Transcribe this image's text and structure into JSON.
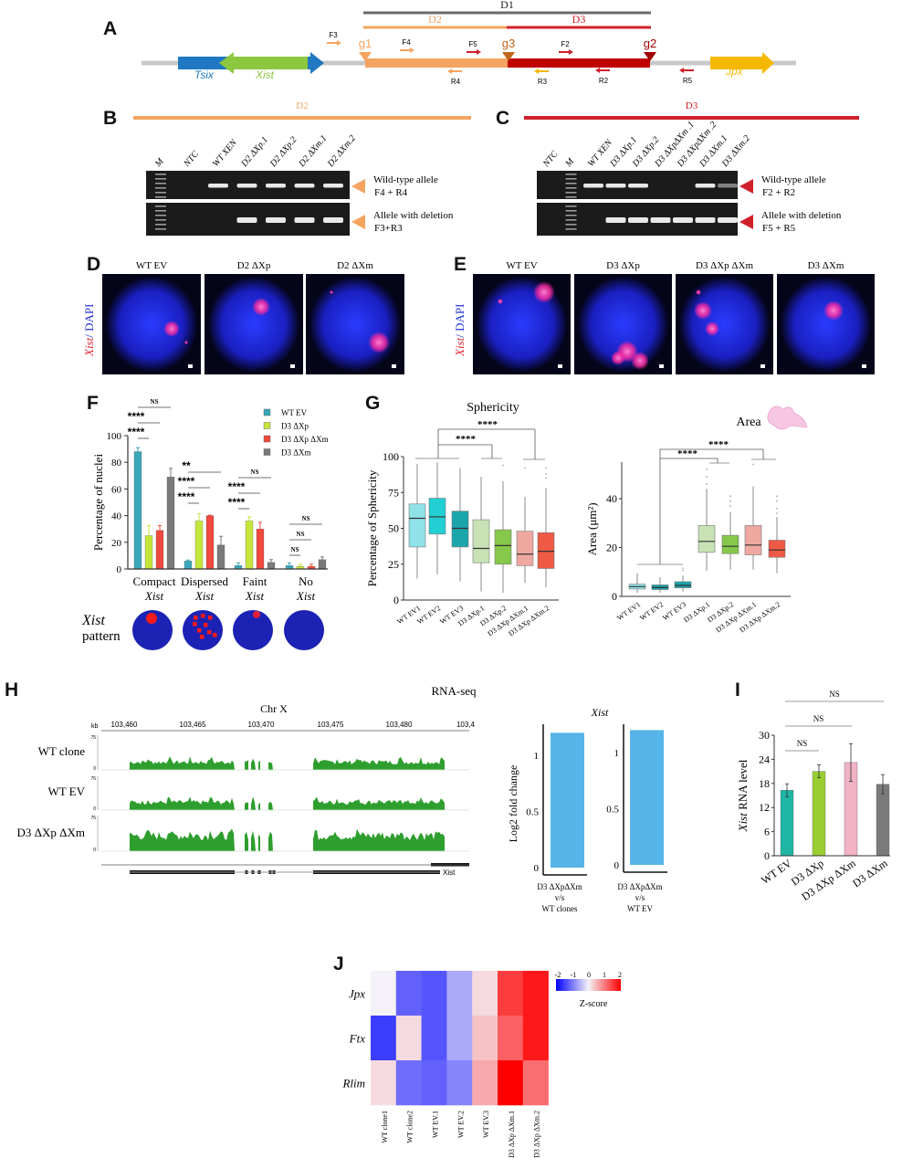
{
  "panels": {
    "A": "A",
    "B": "B",
    "C": "C",
    "D": "D",
    "E": "E",
    "F": "F",
    "G": "G",
    "H": "H",
    "I": "I",
    "J": "J"
  },
  "panel_a": {
    "regions": [
      {
        "name": "D1",
        "color": "#6b6b6b"
      },
      {
        "name": "D2",
        "color": "#f4a460"
      },
      {
        "name": "D3",
        "color": "#d0202a"
      }
    ],
    "genes": {
      "tsix": "Tsix",
      "xist": "Xist",
      "jpx": "Jpx"
    },
    "guides": [
      "g1",
      "g3",
      "g2"
    ],
    "primers_forward": [
      "F3",
      "F4",
      "F5",
      "F2"
    ],
    "primers_reverse": [
      "R4",
      "R3",
      "R2",
      "R5"
    ]
  },
  "panel_b": {
    "region": "D2",
    "lanes": [
      "M",
      "NTC",
      "WT XEN",
      "D2 ΔXp.1",
      "D2 ΔXp.2",
      "D2 ΔXm.1",
      "D2 ΔXm.2"
    ],
    "wt_band": [
      0,
      0,
      1,
      1,
      1,
      1,
      1
    ],
    "del_band": [
      0,
      0,
      0,
      1,
      1,
      1,
      1
    ],
    "band_labels": [
      [
        "Wild-type allele",
        "F4 + R4"
      ],
      [
        "Allele with deletion",
        "F3+R3"
      ]
    ]
  },
  "panel_c": {
    "region": "D3",
    "lanes": [
      "NTC",
      "M",
      "WT XEN",
      "D3 ΔXp.1",
      "D3 ΔXp.2",
      "D3 ΔXpΔXm .1",
      "D3 ΔXpΔXm .2",
      "D3 ΔXm.1",
      "D3 ΔXm.2"
    ],
    "wt_band": [
      0,
      0,
      1,
      1,
      1,
      0,
      0,
      1,
      0.5
    ],
    "del_band": [
      0,
      0,
      0,
      1,
      1,
      1,
      1,
      1,
      1
    ],
    "band_labels": [
      [
        "Wild-type allele",
        "F2 + R2"
      ],
      [
        "Allele with deletion",
        "F5 + R5"
      ]
    ]
  },
  "panel_d": {
    "ylabel_italic": "Xist",
    "ylabel_rest": "/ DAPI",
    "images": [
      "WT EV",
      "D2 ΔXp",
      "D2 ΔXm"
    ]
  },
  "panel_e": {
    "ylabel_italic": "Xist",
    "ylabel_rest": "/ DAPI",
    "images": [
      "WT EV",
      "D3 ΔXp",
      "D3 ΔXp ΔXm",
      "D3 ΔXm"
    ]
  },
  "chart_data": [
    {
      "id": "F",
      "type": "bar",
      "ylabel": "Percentage of nuclei",
      "ylim": [
        0,
        100
      ],
      "yticks": [
        "0",
        "20",
        "40",
        "60",
        "80",
        "100"
      ],
      "categories": [
        {
          "line1": "Compact",
          "line2": "Xist"
        },
        {
          "line1": "Dispersed",
          "line2": "Xist"
        },
        {
          "line1": "Faint",
          "line2": "Xist"
        },
        {
          "line1": "No",
          "line2": "Xist"
        }
      ],
      "series": [
        {
          "name": "WT EV",
          "color": "#3aa6b9",
          "values": [
            88,
            6,
            2.5,
            2.5
          ],
          "errors": [
            3,
            0.7,
            2,
            2
          ]
        },
        {
          "name": "D3 ΔXp",
          "color": "#c5e63a",
          "values": [
            25,
            36,
            36,
            2
          ],
          "errors": [
            7.5,
            5.5,
            3,
            1.5
          ]
        },
        {
          "name": "D3 ΔXp ΔXm",
          "color": "#f0483e",
          "values": [
            29,
            40,
            30,
            2
          ],
          "errors": [
            3.5,
            0.3,
            5,
            1.5
          ]
        },
        {
          "name": "D3 ΔXm",
          "color": "#7a7a7a",
          "values": [
            69,
            18,
            5,
            7
          ],
          "errors": [
            6.5,
            6.5,
            2,
            2
          ]
        }
      ],
      "significance": [
        [
          {
            "label": "****",
            "to": 1
          },
          {
            "label": "****",
            "to": 2
          },
          {
            "label": "NS",
            "to": 3
          }
        ],
        [
          {
            "label": "****",
            "to": 1
          },
          {
            "label": "****",
            "to": 2
          },
          {
            "label": "**",
            "to": 3
          }
        ],
        [
          {
            "label": "****",
            "to": 1
          },
          {
            "label": "****",
            "to": 2
          },
          {
            "label": "NS",
            "to": 3
          }
        ],
        [
          {
            "label": "NS",
            "to": 1
          },
          {
            "label": "NS",
            "to": 2
          },
          {
            "label": "NS",
            "to": 3
          }
        ]
      ],
      "pattern_label": {
        "line1": "Xist",
        "line2": "pattern"
      },
      "legend": "top-right"
    },
    {
      "id": "G-sphericity",
      "type": "box",
      "title": "Sphericity",
      "ylabel": "Percentage of Sphericity",
      "ylim": [
        0,
        100
      ],
      "yticks": [
        "0",
        "25",
        "50",
        "75",
        "100"
      ],
      "categories": [
        "WT EV1",
        "WT EV2",
        "WT EV3",
        "D3 ΔXp.1",
        "D3 ΔXp.2",
        "D3 ΔXp ΔXm.1",
        "D3 ΔXp ΔXm.2"
      ],
      "colors": [
        "#8fe3e8",
        "#22cfd3",
        "#1aa5ab",
        "#c8e2b5",
        "#86c84a",
        "#eea8a0",
        "#ee5a45"
      ],
      "boxes": [
        [
          15,
          37,
          57,
          67,
          95
        ],
        [
          18,
          46,
          58,
          71,
          96
        ],
        [
          13,
          37,
          50,
          62,
          92
        ],
        [
          6,
          26,
          36,
          56,
          86
        ],
        [
          5,
          25,
          38,
          49,
          83
        ],
        [
          12,
          24,
          32,
          48,
          72
        ],
        [
          9,
          22,
          34,
          47,
          78
        ]
      ],
      "significance": [
        "****",
        "****"
      ]
    },
    {
      "id": "G-area",
      "type": "box",
      "title": "Area",
      "ylabel": "Area (μm²)",
      "ylim": [
        0,
        55
      ],
      "yticks": [
        "0",
        "20",
        "40"
      ],
      "categories": [
        "WT EV1",
        "WT EV2",
        "WT EV3",
        "D3 ΔXp.1",
        "D3 ΔXp.2",
        "D3 ΔXp ΔXm.1",
        "D3 ΔXp ΔXm.2"
      ],
      "colors": [
        "#8fe3e8",
        "#1aa5ab",
        "#1aa5ab",
        "#c8e2b5",
        "#86c84a",
        "#eea8a0",
        "#ee5a45"
      ],
      "boxes": [
        [
          1.5,
          3,
          4,
          5,
          9.5
        ],
        [
          1.5,
          2.8,
          3.6,
          4.7,
          7.5
        ],
        [
          2,
          3.5,
          4.5,
          6,
          8.5
        ],
        [
          10.5,
          18,
          22.5,
          29,
          44
        ],
        [
          11,
          17.5,
          20.5,
          25,
          34.5
        ],
        [
          11,
          17,
          21,
          29,
          45
        ],
        [
          9.5,
          16,
          19,
          23,
          32.5
        ]
      ],
      "significance": [
        "****",
        "****"
      ]
    },
    {
      "id": "H",
      "type": "area",
      "title": "RNA-seq",
      "subtitle": "Chr X",
      "axis_unit": "kb",
      "xticks": [
        "103,460",
        "103,465",
        "103,470",
        "103,475",
        "103,480",
        "103,4"
      ],
      "track_scale": [
        "75",
        "0"
      ],
      "tracks": [
        "WT clone",
        "WT EV",
        "D3 ΔXp ΔXm"
      ],
      "gene": "Xist"
    },
    {
      "id": "H-log2fc",
      "type": "bar",
      "title": "Xist",
      "ylabel": "Log2 fold change",
      "panels": [
        {
          "label": [
            "D3 ΔXpΔXm",
            "v/s",
            "WT clones"
          ],
          "value": 1.2,
          "yticks": [
            "0",
            "0.5",
            "1"
          ]
        },
        {
          "label": [
            "D3 ΔXpΔXm",
            "v/s",
            "WT EV"
          ],
          "value": 1.2,
          "yticks": [
            "0",
            "0.5",
            "1"
          ]
        }
      ],
      "color": "#56b4e9",
      "ylim": [
        0,
        1.25
      ]
    },
    {
      "id": "I",
      "type": "bar",
      "ylabel_italic": "Xist",
      "ylabel_rest": " RNA level",
      "ylim": [
        0,
        30
      ],
      "yticks": [
        "0",
        "6",
        "12",
        "18",
        "24",
        "30"
      ],
      "categories": [
        "WT EV",
        "D3 ΔXp",
        "D3 ΔXp ΔXm",
        "D3 ΔXm"
      ],
      "values": [
        16.3,
        21,
        23.2,
        17.8
      ],
      "errors": [
        1.6,
        1.6,
        4.7,
        2.4
      ],
      "colors": [
        "#1fb5a3",
        "#9acd32",
        "#f0b2c4",
        "#7a7a7a"
      ],
      "significance": [
        "NS",
        "NS",
        "NS"
      ]
    },
    {
      "id": "J",
      "type": "heatmap",
      "rows": [
        "Jpx",
        "Ftx",
        "Rlim"
      ],
      "columns": [
        "WT clone1",
        "WT clone2",
        "WT EV.1",
        "WT EV.2",
        "WT EV.3",
        "D3 ΔXp ΔXm.1",
        "D3 ΔXp ΔXm.2"
      ],
      "values": [
        [
          0,
          -1.2,
          -1.3,
          -0.6,
          0.2,
          1.5,
          1.8
        ],
        [
          -1.5,
          0.2,
          -1.3,
          -0.6,
          0.4,
          1.2,
          1.8
        ],
        [
          0.2,
          -1.1,
          -1.2,
          -0.9,
          0.6,
          2.0,
          1.1
        ]
      ],
      "colorbar": {
        "label": "Z-score",
        "ticks": [
          "-2",
          "-1",
          "0",
          "1",
          "2"
        ],
        "low": "#0000ff",
        "mid": "#f4f2f8",
        "high": "#ff0000"
      }
    }
  ]
}
